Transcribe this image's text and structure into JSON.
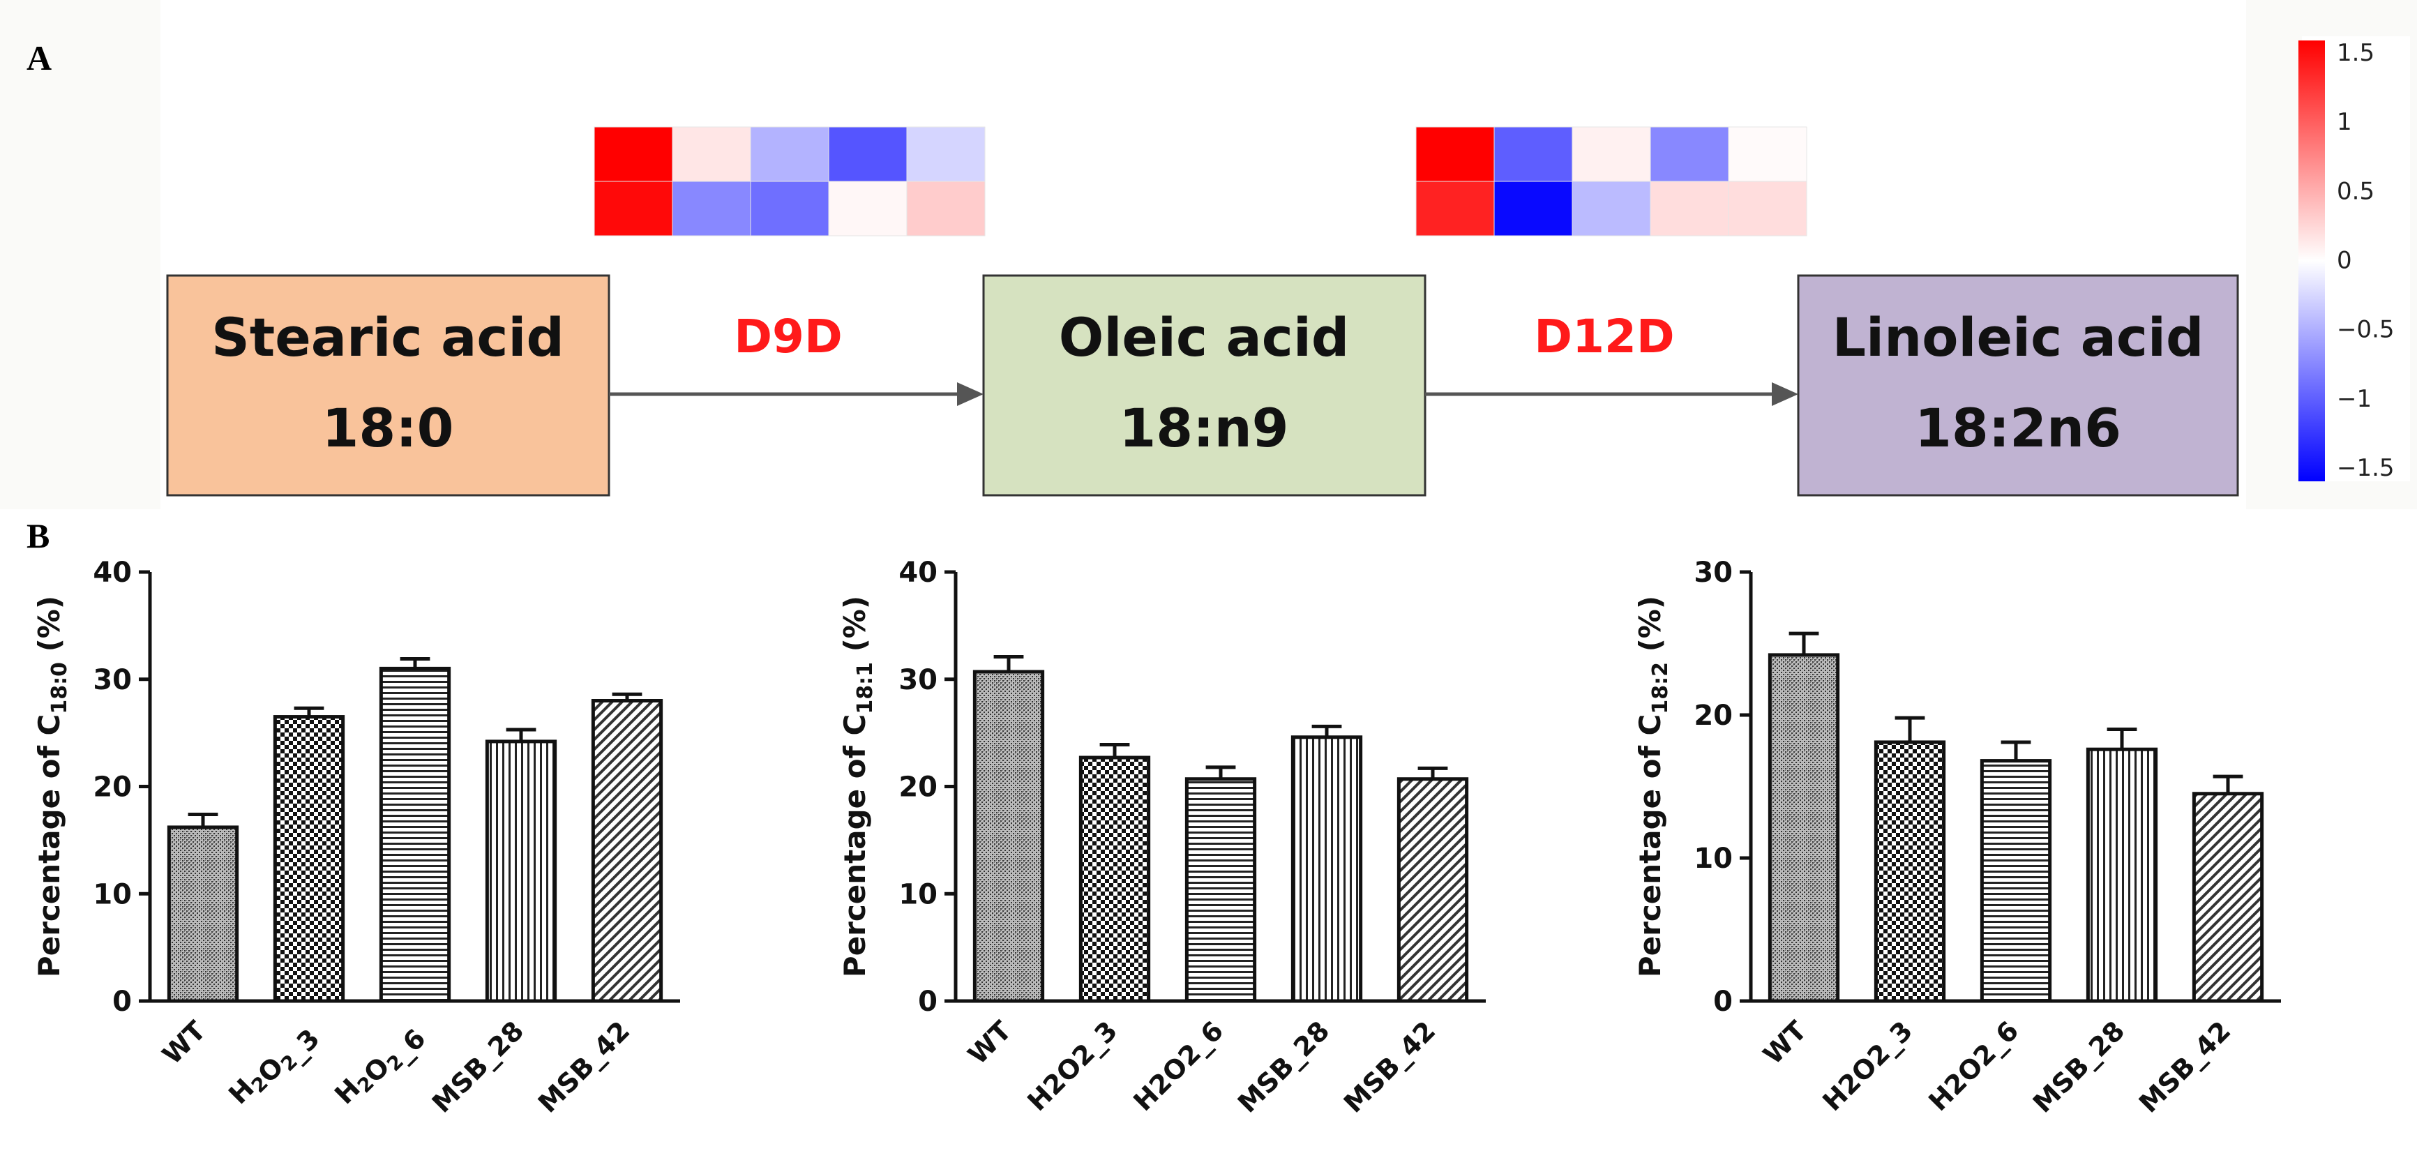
{
  "panel_a": {
    "label": "A",
    "boxes": [
      {
        "name": "Stearic acid",
        "formula": "18:0",
        "fill": "#f9c39b"
      },
      {
        "name": "Oleic acid",
        "formula": "18:n9",
        "fill": "#d6e2c0"
      },
      {
        "name": "Linoleic acid",
        "formula": "18:2n6",
        "fill": "#c0b3d2"
      }
    ],
    "enzymes": [
      "D9D",
      "D12D"
    ],
    "enzyme_color": "#ff1a1a",
    "heatmaps": [
      {
        "rows": [
          [
            1.5,
            0.15,
            -0.45,
            -1.0,
            -0.25
          ],
          [
            1.45,
            -0.7,
            -0.85,
            0.05,
            0.3
          ]
        ]
      },
      {
        "rows": [
          [
            1.5,
            -0.95,
            0.08,
            -0.7,
            0.03
          ],
          [
            1.3,
            -1.45,
            -0.4,
            0.2,
            0.2
          ]
        ]
      }
    ],
    "colorbar": {
      "ticks": [
        "1.5",
        "1",
        "0.5",
        "0",
        "−0.5",
        "−1",
        "−1.5"
      ],
      "min": -1.5,
      "max": 1.5,
      "high": "#ff0000",
      "mid": "#ffffff",
      "low": "#0000ff"
    }
  },
  "panel_b": {
    "label": "B"
  },
  "chart_data": [
    {
      "type": "bar",
      "ylabel_prefix": "Percentage of C",
      "ylabel_sub": "18:0",
      "ylabel_suffix": " (%)",
      "categories": [
        {
          "parts": [
            [
              "WT",
              "n"
            ]
          ]
        },
        {
          "parts": [
            [
              "H",
              "n"
            ],
            [
              "2",
              "s"
            ],
            [
              "O",
              "n"
            ],
            [
              "2",
              "s"
            ],
            [
              "_3",
              "n"
            ]
          ]
        },
        {
          "parts": [
            [
              "H",
              "n"
            ],
            [
              "2",
              "s"
            ],
            [
              "O",
              "n"
            ],
            [
              "2",
              "s"
            ],
            [
              "_6",
              "n"
            ]
          ]
        },
        {
          "parts": [
            [
              "MSB_28",
              "n"
            ]
          ]
        },
        {
          "parts": [
            [
              "MSB_42",
              "n"
            ]
          ]
        }
      ],
      "values": [
        16.2,
        26.5,
        31.0,
        24.2,
        28.0
      ],
      "errors": [
        1.2,
        0.8,
        0.9,
        1.1,
        0.6
      ],
      "ylim": [
        0,
        40
      ],
      "yticks": [
        0,
        10,
        20,
        30,
        40
      ],
      "patterns": [
        "speckle",
        "checker",
        "horizontal",
        "vertical",
        "diagonal"
      ]
    },
    {
      "type": "bar",
      "ylabel_prefix": "Percentage of C",
      "ylabel_sub": "18:1",
      "ylabel_suffix": " (%)",
      "categories": [
        {
          "parts": [
            [
              "WT",
              "n"
            ]
          ]
        },
        {
          "parts": [
            [
              "H2O2_3",
              "n"
            ]
          ]
        },
        {
          "parts": [
            [
              "H2O2_6",
              "n"
            ]
          ]
        },
        {
          "parts": [
            [
              "MSB_28",
              "n"
            ]
          ]
        },
        {
          "parts": [
            [
              "MSB_42",
              "n"
            ]
          ]
        }
      ],
      "values": [
        30.7,
        22.7,
        20.7,
        24.6,
        20.7
      ],
      "errors": [
        1.4,
        1.2,
        1.1,
        1.0,
        1.0
      ],
      "ylim": [
        0,
        40
      ],
      "yticks": [
        0,
        10,
        20,
        30,
        40
      ],
      "patterns": [
        "speckle",
        "checker",
        "horizontal",
        "vertical",
        "diagonal"
      ]
    },
    {
      "type": "bar",
      "ylabel_prefix": "Percentage of C",
      "ylabel_sub": "18:2",
      "ylabel_suffix": " (%)",
      "categories": [
        {
          "parts": [
            [
              "WT",
              "n"
            ]
          ]
        },
        {
          "parts": [
            [
              "H2O2_3",
              "n"
            ]
          ]
        },
        {
          "parts": [
            [
              "H2O2_6",
              "n"
            ]
          ]
        },
        {
          "parts": [
            [
              "MSB_28",
              "n"
            ]
          ]
        },
        {
          "parts": [
            [
              "MSB_42",
              "n"
            ]
          ]
        }
      ],
      "values": [
        24.2,
        18.1,
        16.8,
        17.6,
        14.5
      ],
      "errors": [
        1.5,
        1.7,
        1.3,
        1.4,
        1.2
      ],
      "ylim": [
        0,
        30
      ],
      "yticks": [
        0,
        10,
        20,
        30
      ],
      "patterns": [
        "speckle",
        "checker",
        "horizontal",
        "vertical",
        "diagonal"
      ]
    }
  ]
}
